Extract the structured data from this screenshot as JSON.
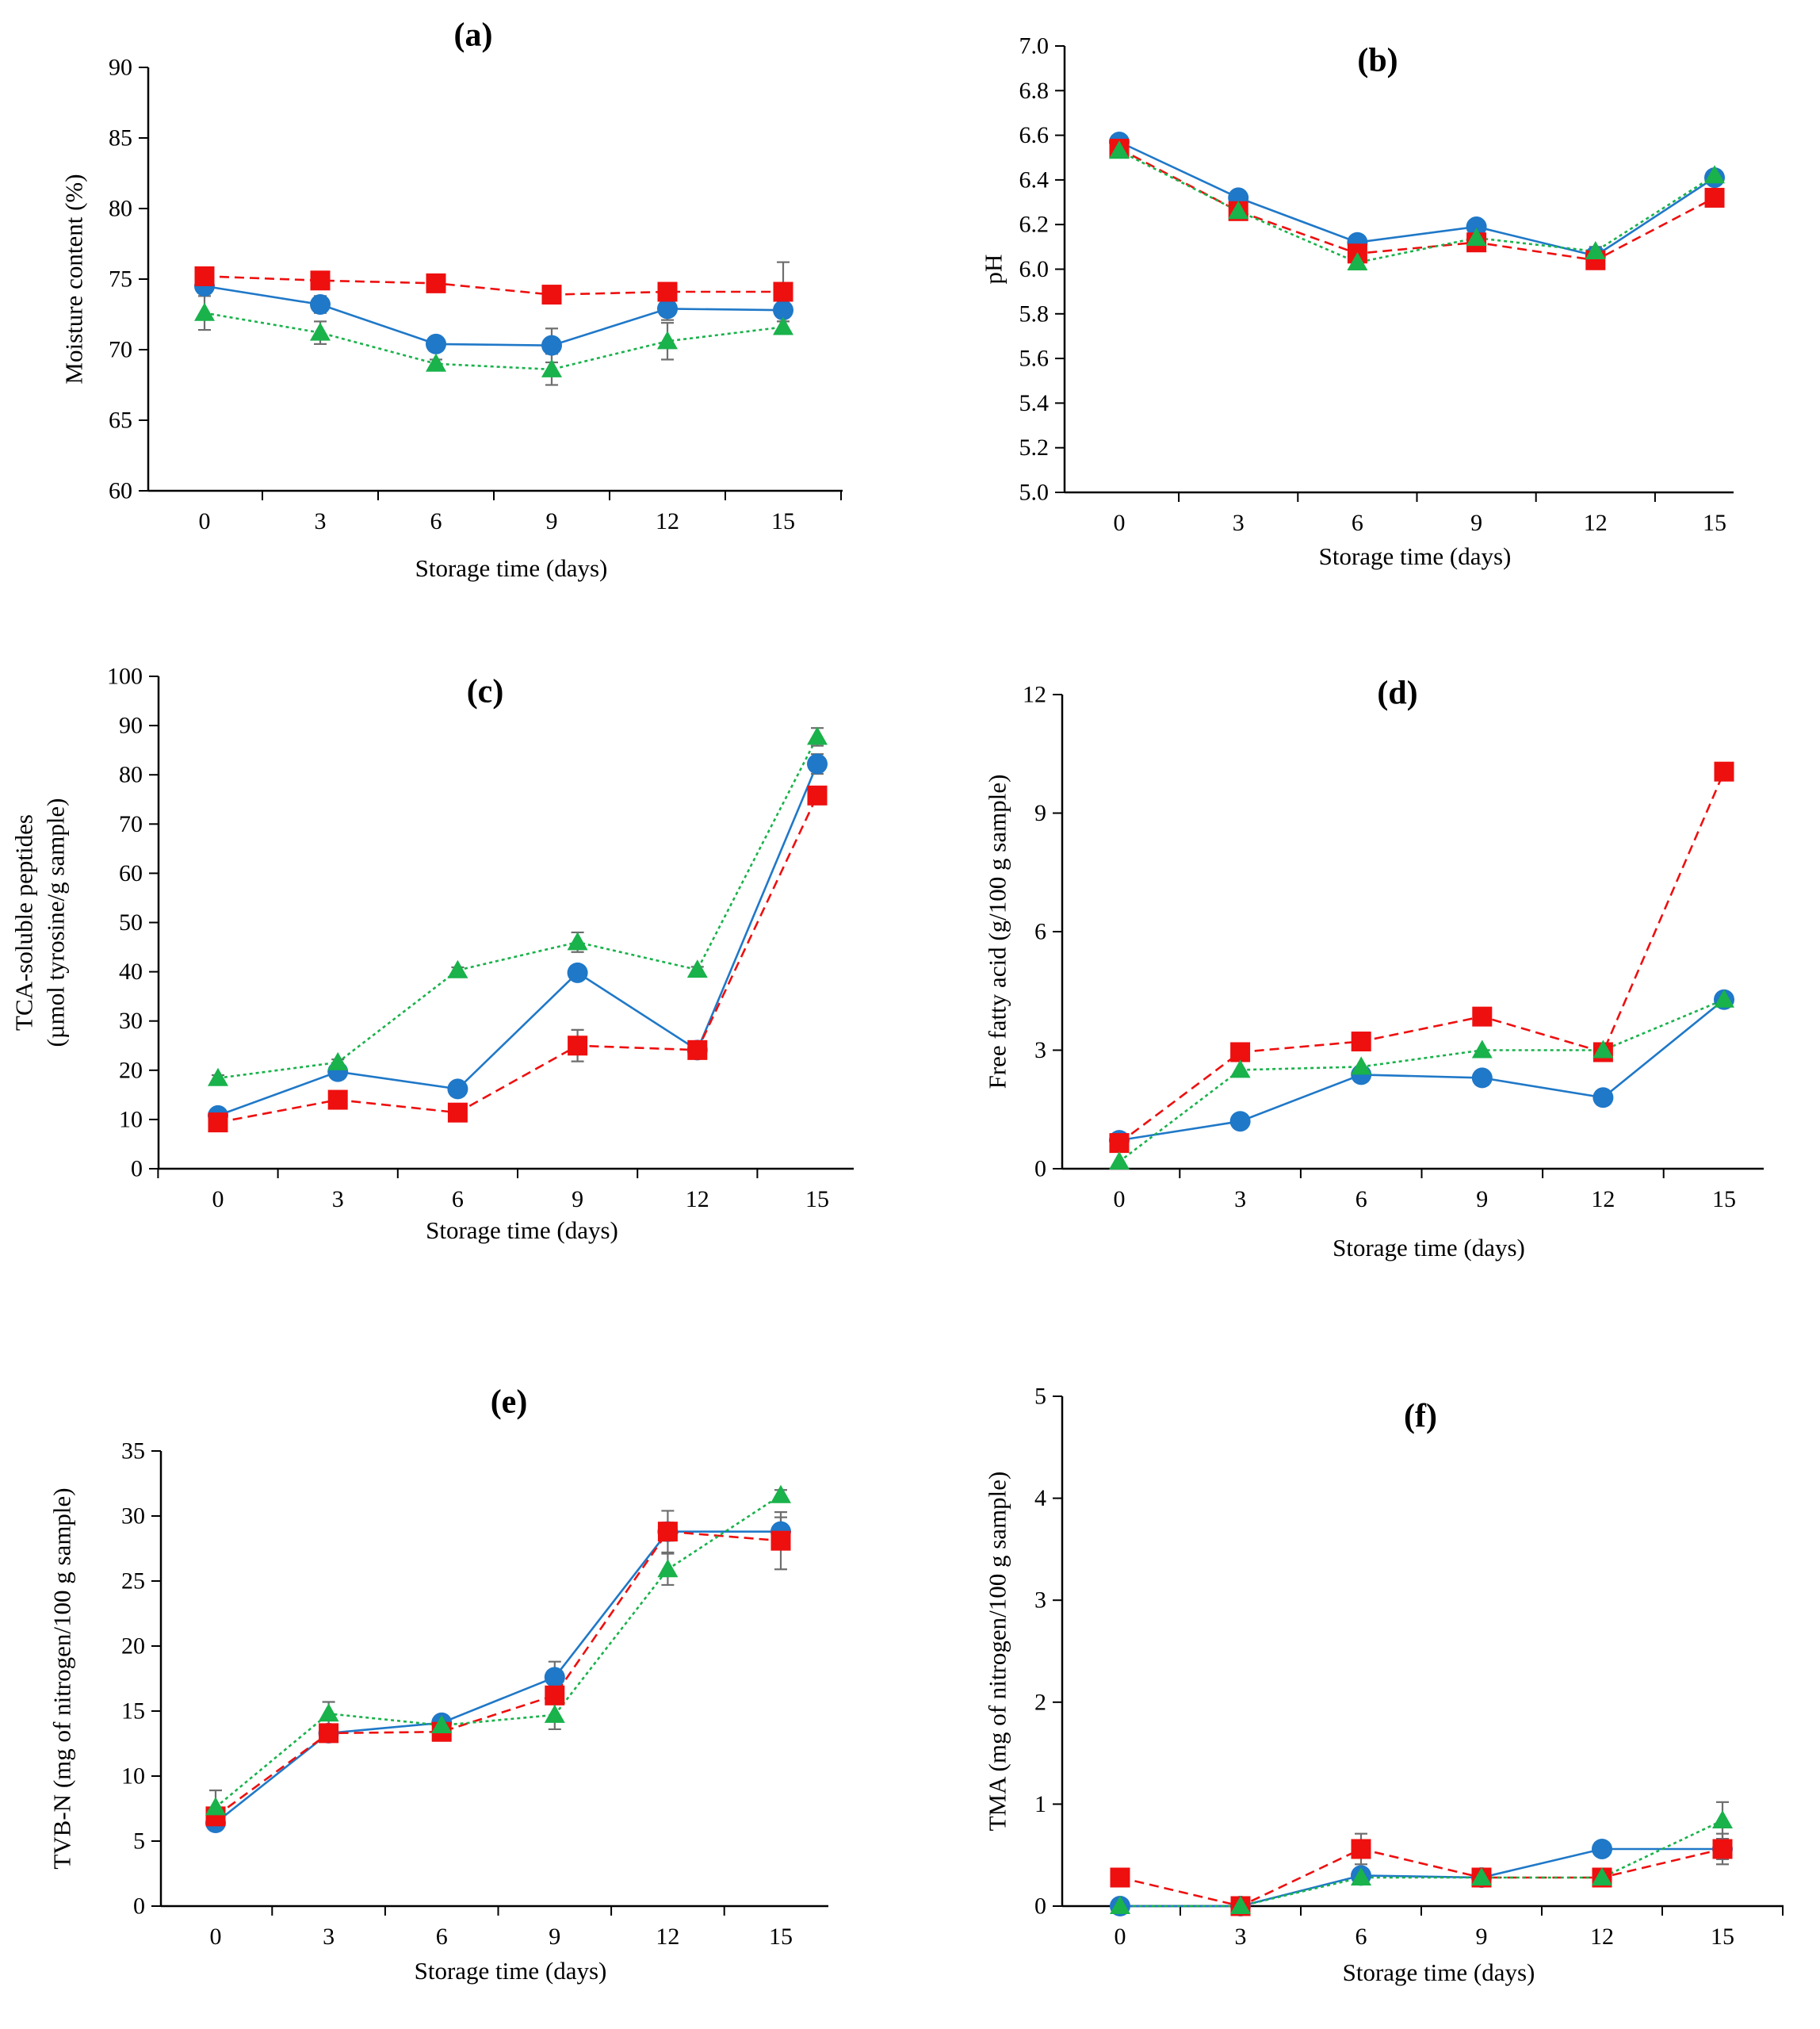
{
  "colors": {
    "blue": "#1f78c8",
    "red": "#ee0f0f",
    "green": "#19b24b",
    "error_bar": "#6e6e6e",
    "axis": "#000000"
  },
  "series_styles": [
    {
      "key": "circle",
      "color": "#1f78c8",
      "dash": "solid",
      "marker": "circle"
    },
    {
      "key": "square",
      "color": "#ee0f0f",
      "dash": "dashed",
      "marker": "square"
    },
    {
      "key": "triangle",
      "color": "#19b24b",
      "dash": "dotted",
      "marker": "triangle"
    }
  ],
  "chart_data": [
    {
      "id": "a",
      "type": "line",
      "title": "(a)",
      "xlabel": "Storage time (days)",
      "ylabel": [
        "Moisture content (%)"
      ],
      "x": [
        0,
        3,
        6,
        9,
        12,
        15
      ],
      "x_ticks": [
        "0",
        "3",
        "6",
        "9",
        "12",
        "15"
      ],
      "ylim": [
        60,
        90
      ],
      "y_ticks": [
        "60",
        "65",
        "70",
        "75",
        "80",
        "85",
        "90"
      ],
      "series": [
        {
          "name": "circle",
          "values": [
            74.5,
            73.2,
            70.4,
            70.3,
            72.9,
            72.8
          ],
          "errors": [
            0.5,
            0.6,
            0.3,
            1.2,
            0.8,
            0.4
          ]
        },
        {
          "name": "square",
          "values": [
            75.2,
            74.9,
            74.7,
            73.9,
            74.1,
            74.1
          ],
          "errors": [
            0.3,
            0.3,
            0.3,
            0.3,
            0.4,
            2.1
          ]
        },
        {
          "name": "triangle",
          "values": [
            72.6,
            71.2,
            69.0,
            68.6,
            70.6,
            71.6
          ],
          "errors": [
            1.2,
            0.8,
            0.3,
            1.1,
            1.3,
            0.4
          ]
        }
      ]
    },
    {
      "id": "b",
      "type": "line",
      "title": "(b)",
      "xlabel": "Storage time (days)",
      "ylabel": [
        "pH"
      ],
      "x": [
        0,
        3,
        6,
        9,
        12,
        15
      ],
      "x_ticks": [
        "0",
        "3",
        "6",
        "9",
        "12",
        "15"
      ],
      "ylim": [
        5.0,
        7.0
      ],
      "y_ticks": [
        "5.0",
        "5.2",
        "5.4",
        "5.6",
        "5.8",
        "6.0",
        "6.2",
        "6.4",
        "6.6",
        "6.8",
        "7.0"
      ],
      "series": [
        {
          "name": "circle",
          "values": [
            6.57,
            6.32,
            6.12,
            6.19,
            6.06,
            6.41
          ],
          "errors": [
            0.02,
            0.02,
            0.02,
            0.02,
            0.02,
            0.02
          ]
        },
        {
          "name": "square",
          "values": [
            6.54,
            6.26,
            6.07,
            6.12,
            6.04,
            6.32
          ],
          "errors": [
            0.02,
            0.02,
            0.02,
            0.02,
            0.02,
            0.02
          ]
        },
        {
          "name": "triangle",
          "values": [
            6.53,
            6.26,
            6.03,
            6.14,
            6.08,
            6.42
          ],
          "errors": [
            0.02,
            0.02,
            0.02,
            0.02,
            0.02,
            0.02
          ]
        }
      ]
    },
    {
      "id": "c",
      "type": "line",
      "title": "(c)",
      "xlabel": "Storage time (days)",
      "ylabel": [
        "TCA-soluble peptides",
        "(µmol tyrosine/g sample)"
      ],
      "x": [
        0,
        3,
        6,
        9,
        12,
        15
      ],
      "x_ticks": [
        "0",
        "3",
        "6",
        "9",
        "12",
        "15"
      ],
      "ylim": [
        0,
        100
      ],
      "y_ticks": [
        "0",
        "10",
        "20",
        "30",
        "40",
        "50",
        "60",
        "70",
        "80",
        "90",
        "100"
      ],
      "series": [
        {
          "name": "circle",
          "values": [
            10.8,
            19.7,
            16.2,
            39.8,
            24.1,
            82.2
          ],
          "errors": [
            0.6,
            1.0,
            0.6,
            1.0,
            0.6,
            2.0
          ]
        },
        {
          "name": "square",
          "values": [
            9.4,
            14.0,
            11.4,
            25.0,
            24.1,
            75.8
          ],
          "errors": [
            0.5,
            0.6,
            0.6,
            3.2,
            0.6,
            1.8
          ]
        },
        {
          "name": "triangle",
          "values": [
            18.4,
            21.6,
            40.3,
            46.0,
            40.4,
            87.7
          ],
          "errors": [
            0.6,
            0.6,
            0.6,
            2.0,
            0.6,
            1.8
          ]
        }
      ]
    },
    {
      "id": "d",
      "type": "line",
      "title": "(d)",
      "xlabel": "Storage time (days)",
      "ylabel": [
        "Free fatty acid (g/100 g sample)"
      ],
      "x": [
        0,
        3,
        6,
        9,
        12,
        15
      ],
      "x_ticks": [
        "0",
        "3",
        "6",
        "9",
        "12",
        "15"
      ],
      "ylim": [
        0,
        12
      ],
      "y_ticks": [
        "0",
        "3",
        "6",
        "9",
        "12"
      ],
      "series": [
        {
          "name": "circle",
          "values": [
            0.72,
            1.2,
            2.38,
            2.3,
            1.8,
            4.28
          ],
          "errors": [
            0.05,
            0.05,
            0.05,
            0.05,
            0.05,
            0.05
          ]
        },
        {
          "name": "square",
          "values": [
            0.65,
            2.95,
            3.22,
            3.85,
            2.95,
            10.05
          ],
          "errors": [
            0.05,
            0.05,
            0.05,
            0.05,
            0.05,
            0.1
          ]
        },
        {
          "name": "triangle",
          "values": [
            0.18,
            2.5,
            2.58,
            3.0,
            3.0,
            4.28
          ],
          "errors": [
            0.05,
            0.05,
            0.05,
            0.05,
            0.05,
            0.05
          ]
        }
      ]
    },
    {
      "id": "e",
      "type": "line",
      "title": "(e)",
      "xlabel": "Storage time (days)",
      "ylabel": [
        "TVB-N  (mg of nitrogen/100 g sample)"
      ],
      "x": [
        0,
        3,
        6,
        9,
        12,
        15
      ],
      "x_ticks": [
        "0",
        "3",
        "6",
        "9",
        "12",
        "15"
      ],
      "ylim": [
        0,
        35
      ],
      "y_ticks": [
        "0",
        "5",
        "10",
        "15",
        "20",
        "25",
        "30",
        "35"
      ],
      "series": [
        {
          "name": "circle",
          "values": [
            6.4,
            13.3,
            14.1,
            17.6,
            28.8,
            28.8
          ],
          "errors": [
            0.3,
            0.3,
            0.4,
            1.2,
            0.7,
            1.1
          ]
        },
        {
          "name": "square",
          "values": [
            6.9,
            13.3,
            13.4,
            16.2,
            28.8,
            28.1
          ],
          "errors": [
            0.3,
            0.3,
            0.3,
            0.6,
            1.6,
            2.2
          ]
        },
        {
          "name": "triangle",
          "values": [
            7.6,
            14.8,
            13.9,
            14.7,
            25.9,
            31.6
          ],
          "errors": [
            1.3,
            0.9,
            0.4,
            1.1,
            1.2,
            0.4
          ]
        }
      ]
    },
    {
      "id": "f",
      "type": "line",
      "title": "(f)",
      "xlabel": "Storage time (days)",
      "ylabel": [
        "TMA  (mg of nitrogen/100 g sample)"
      ],
      "x": [
        0,
        3,
        6,
        9,
        12,
        15
      ],
      "x_ticks": [
        "0",
        "3",
        "6",
        "9",
        "12",
        "15"
      ],
      "ylim": [
        0,
        5
      ],
      "y_ticks": [
        "0",
        "1",
        "2",
        "3",
        "4",
        "5"
      ],
      "series": [
        {
          "name": "circle",
          "values": [
            0.0,
            0.0,
            0.3,
            0.28,
            0.56,
            0.56
          ],
          "errors": [
            0.02,
            0.02,
            0.05,
            0.02,
            0.02,
            0.1
          ]
        },
        {
          "name": "square",
          "values": [
            0.28,
            0.0,
            0.56,
            0.28,
            0.28,
            0.56
          ],
          "errors": [
            0.02,
            0.02,
            0.15,
            0.02,
            0.02,
            0.15
          ]
        },
        {
          "name": "triangle",
          "values": [
            0.0,
            0.0,
            0.28,
            0.28,
            0.28,
            0.84
          ],
          "errors": [
            0.02,
            0.02,
            0.05,
            0.02,
            0.02,
            0.18
          ]
        }
      ]
    }
  ]
}
